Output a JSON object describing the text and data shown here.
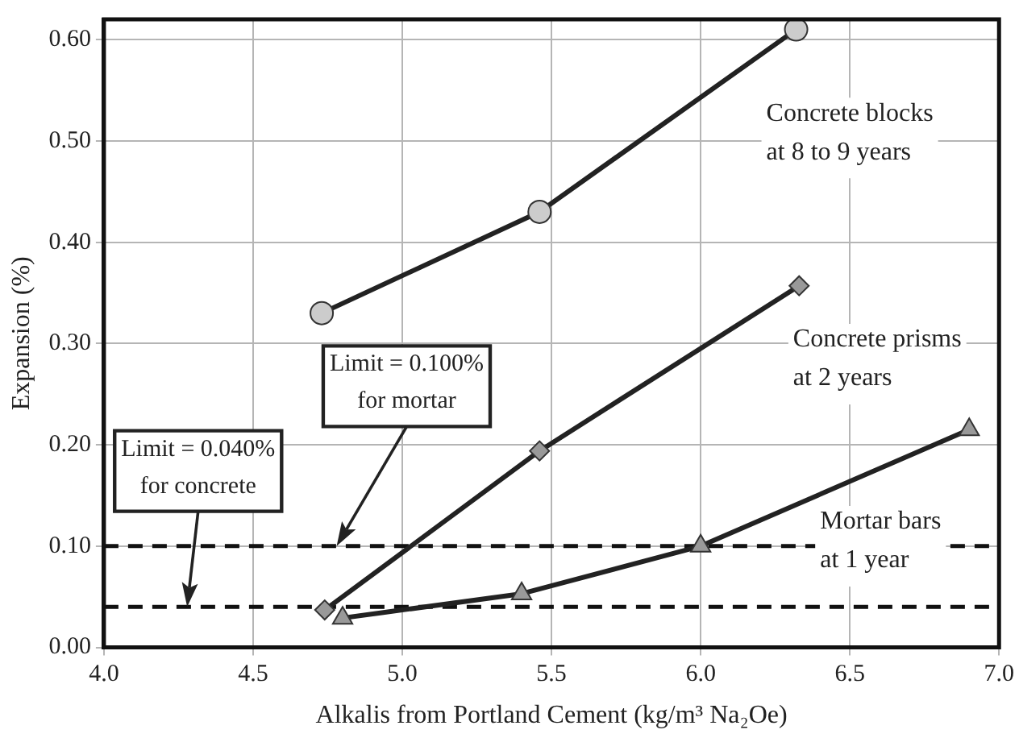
{
  "chart_data": {
    "type": "line",
    "xlabel": "Alkalis from Portland Cement (kg/m³ Na₂Oe)",
    "ylabel": "Expansion (%)",
    "xlim": [
      4,
      7
    ],
    "xticks": [
      {
        "value": 4,
        "label": "4.0"
      },
      {
        "value": 4.5,
        "label": "4.5"
      },
      {
        "value": 5,
        "label": "5.0"
      },
      {
        "value": 5.5,
        "label": "5.5"
      },
      {
        "value": 6,
        "label": "6.0"
      },
      {
        "value": 6.5,
        "label": "6.5"
      },
      {
        "value": 7,
        "label": "7.0"
      }
    ],
    "ylim": [
      0,
      0.62
    ],
    "yticks": [
      {
        "value": 0,
        "label": "0.00"
      },
      {
        "value": 0.1,
        "label": "0.10"
      },
      {
        "value": 0.2,
        "label": "0.20"
      },
      {
        "value": 0.3,
        "label": "0.30"
      },
      {
        "value": 0.4,
        "label": "0.40"
      },
      {
        "value": 0.5,
        "label": "0.50"
      },
      {
        "value": 0.6,
        "label": "0.60"
      }
    ],
    "grid": true,
    "line_style": "solid",
    "series": [
      {
        "name": "Concrete blocks\nat 8 to 9 years",
        "color": "#cccccc",
        "marker": "circle",
        "x": [
          4.73,
          5.46,
          6.32
        ],
        "values": [
          0.33,
          0.43,
          0.61
        ]
      },
      {
        "name": "Concrete prisms\nat 2 years",
        "color": "#999999",
        "marker": "diamond",
        "x": [
          4.74,
          5.46,
          6.33
        ],
        "values": [
          0.037,
          0.194,
          0.357
        ]
      },
      {
        "name": "Mortar bars\nat 1 year",
        "color": "#999999",
        "marker": "triangle",
        "x": [
          4.8,
          5.4,
          6.0,
          6.9
        ],
        "values": [
          0.029,
          0.053,
          0.1,
          0.215
        ]
      }
    ],
    "ref_lines": [
      {
        "axis": "y",
        "value": 0.1,
        "line_style": "dashed"
      },
      {
        "axis": "y",
        "value": 0.04,
        "line_style": "dashed"
      }
    ],
    "annotations": [
      "Limit = 0.100%\nfor mortar",
      "Limit = 0.040%\nfor concrete"
    ]
  }
}
